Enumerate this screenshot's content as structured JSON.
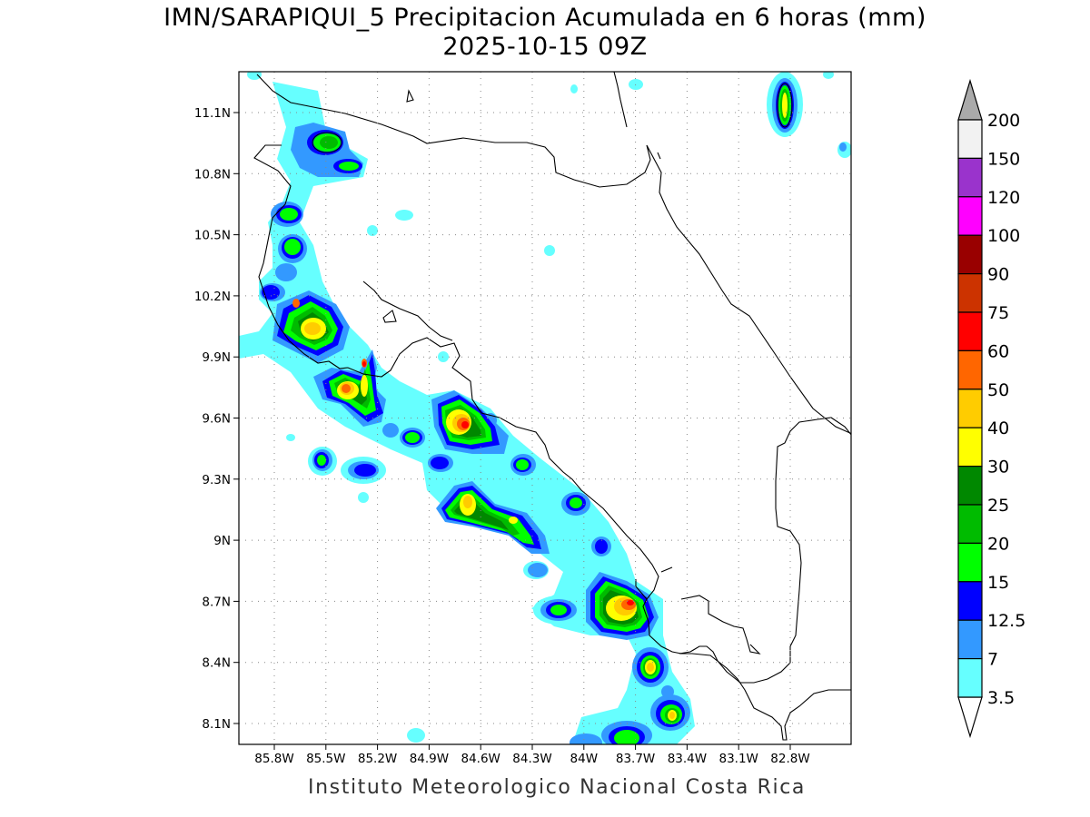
{
  "title": {
    "line1": "IMN/SARAPIQUI_5 Precipitacion Acumulada en 6 horas (mm)",
    "line2": "2025-10-15 09Z"
  },
  "footer": "Instituto Meteorologico Nacional Costa Rica",
  "map": {
    "lat_ticks": [
      "11.1N",
      "10.8N",
      "10.5N",
      "10.2N",
      "9.9N",
      "9.6N",
      "9.3N",
      "9N",
      "8.7N",
      "8.4N",
      "8.1N"
    ],
    "lon_ticks": [
      "85.8W",
      "85.5W",
      "85.2W",
      "84.9W",
      "84.6W",
      "84.3W",
      "84W",
      "83.7W",
      "83.4W",
      "83.1W",
      "82.8W"
    ],
    "grid": "dotted"
  },
  "colorbar": {
    "labels": [
      "200",
      "150",
      "120",
      "100",
      "90",
      "75",
      "60",
      "50",
      "40",
      "30",
      "25",
      "20",
      "15",
      "12.5",
      "7",
      "3.5"
    ],
    "colors": [
      "#f2f2f2",
      "#9a33cc",
      "#ff00ff",
      "#990000",
      "#cc3300",
      "#ff0000",
      "#ff6600",
      "#ffcc00",
      "#ffff00",
      "#008800",
      "#00bb00",
      "#00ff00",
      "#0000ff",
      "#3399ff",
      "#66ffff"
    ],
    "top_arrow_color": "#aaaaaa",
    "bottom_arrow_color": "#ffffff"
  }
}
